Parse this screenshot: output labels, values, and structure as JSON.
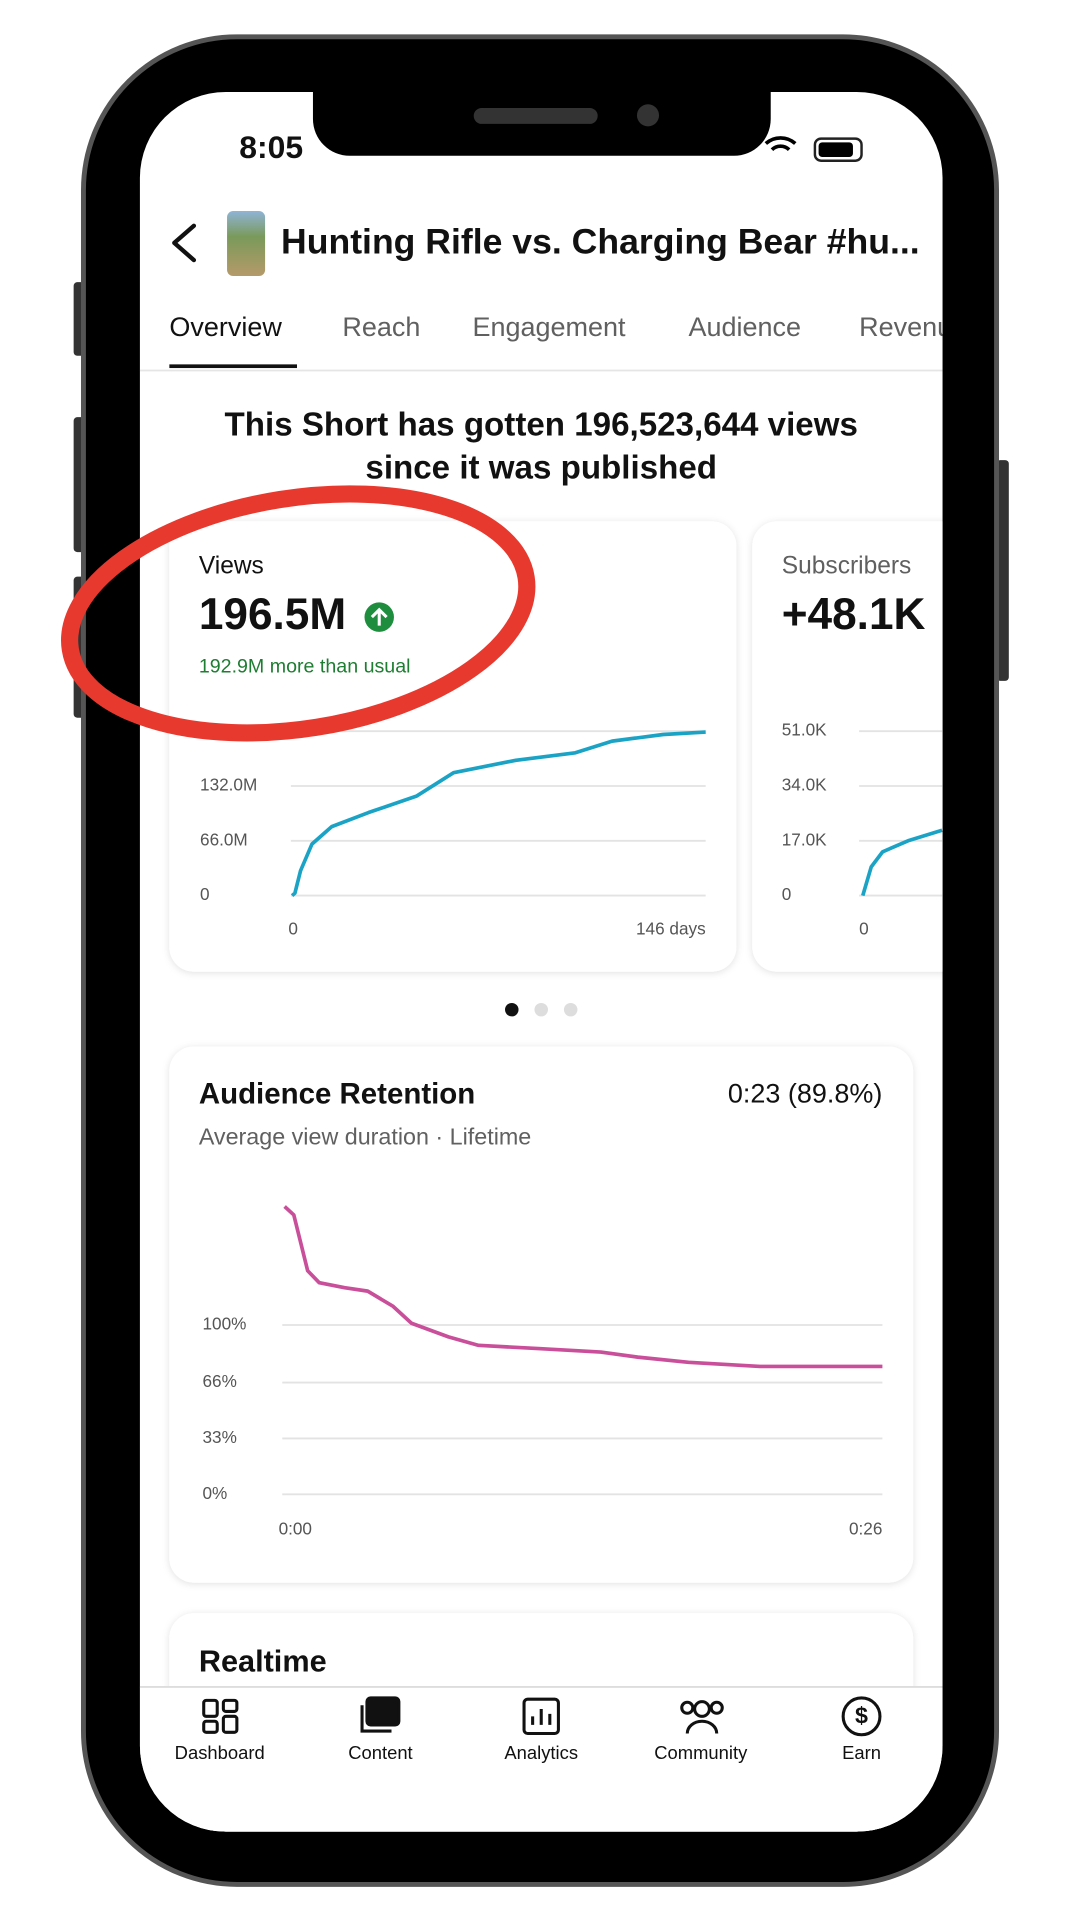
{
  "status_bar": {
    "time": "8:05"
  },
  "header": {
    "title": "Hunting Rifle vs. Charging Bear #hu..."
  },
  "tabs": [
    "Overview",
    "Reach",
    "Engagement",
    "Audience",
    "Revenue"
  ],
  "headline": [
    "This Short has gotten 196,523,644 views",
    "since it was published"
  ],
  "views_card": {
    "label": "Views",
    "value": "196.5M",
    "delta": "192.9M more than usual",
    "chart": {
      "type": "line",
      "color": "#1ba3c6",
      "x": [
        0,
        1,
        3,
        7,
        14,
        27,
        44,
        57,
        79,
        100,
        113,
        131,
        146
      ],
      "values": [
        0,
        3,
        30,
        62,
        83,
        100,
        120,
        148,
        163,
        172,
        186,
        194,
        197
      ],
      "xlim": [
        0,
        146
      ],
      "xticks": [
        0,
        {
          "value": 146,
          "label": "146 days"
        }
      ],
      "ylim": [
        0,
        198
      ],
      "yticks": [
        0,
        {
          "value": 66,
          "label": "66.0M"
        },
        {
          "value": 132,
          "label": "132.0M"
        }
      ],
      "grid": true
    }
  },
  "subscribers_card": {
    "label": "Subscribers",
    "value": "+48.1K",
    "chart": {
      "type": "line",
      "color": "#1ba3c6",
      "x": [
        0,
        3,
        7,
        16,
        28
      ],
      "values": [
        0,
        8.9,
        13.6,
        17,
        20.3
      ],
      "xlim": [
        0,
        146
      ],
      "xticks": [
        0
      ],
      "ylim": [
        0,
        51
      ],
      "yticks": [
        0,
        {
          "value": 17,
          "label": "17.0K"
        },
        {
          "value": 34,
          "label": "34.0K"
        },
        {
          "value": 51,
          "label": "51.0K"
        }
      ],
      "grid": true
    }
  },
  "retention_card": {
    "title": "Audience Retention",
    "value": "0:23 (89.8%)",
    "subtitle": "Average view duration · Lifetime",
    "chart": {
      "type": "line",
      "color": "#c94f9a",
      "x": [
        0.1,
        0.5,
        1.1,
        1.6,
        2.7,
        3.7,
        4.8,
        5.6,
        7.2,
        8.5,
        11.2,
        13.8,
        15.4,
        17.6,
        20.7,
        26
      ],
      "values": [
        170,
        165,
        132,
        125,
        122,
        120,
        111,
        101,
        93,
        88,
        86,
        84,
        81,
        78,
        75.5,
        75.5
      ],
      "xlim": [
        0,
        26
      ],
      "xticks": [
        {
          "value": 0,
          "label": "0:00"
        },
        {
          "value": 26,
          "label": "0:26"
        }
      ],
      "ylim": [
        0,
        175
      ],
      "yticks": [
        {
          "value": 0,
          "label": "0%"
        },
        {
          "value": 33,
          "label": "33%"
        },
        {
          "value": 66,
          "label": "66%"
        },
        {
          "value": 100,
          "label": "100%"
        }
      ],
      "grid": true
    }
  },
  "realtime_card": {
    "title": "Realtime"
  },
  "nav": [
    "Dashboard",
    "Content",
    "Analytics",
    "Community",
    "Earn"
  ]
}
